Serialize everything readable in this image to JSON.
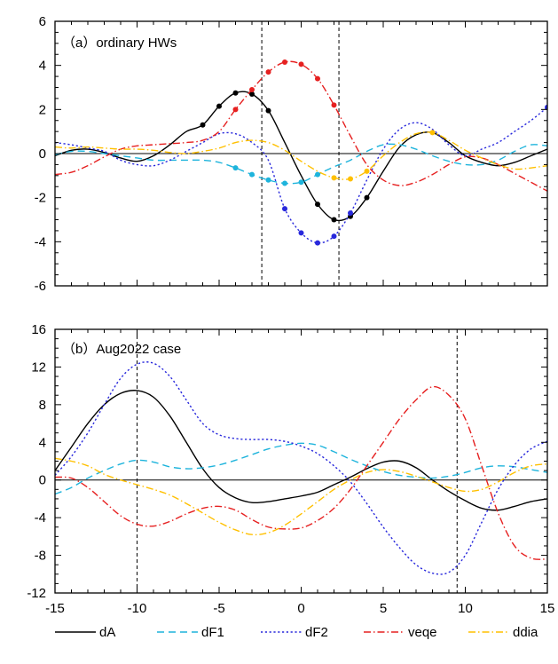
{
  "chart_data": [
    {
      "type": "line",
      "title": "（a）ordinary HWs",
      "xlim": [
        -15,
        15
      ],
      "ylim": [
        -6,
        6
      ],
      "xticks": [
        -15,
        -10,
        -5,
        0,
        5,
        10,
        15
      ],
      "yticks": [
        -6,
        -4,
        -2,
        0,
        2,
        4,
        6
      ],
      "ytick_labels": [
        "-6",
        "-4",
        "-2",
        "0",
        "2",
        "4",
        "6"
      ],
      "vlines": [
        -2.4,
        2.3
      ],
      "series": [
        {
          "name": "dA",
          "color": "#000000",
          "dash": "solid",
          "x": [
            -15,
            -14,
            -13,
            -12,
            -11,
            -10,
            -9,
            -8,
            -7,
            -6,
            -5,
            -4,
            -3,
            -2,
            -1,
            0,
            1,
            2,
            3,
            4,
            5,
            6,
            7,
            8,
            9,
            10,
            11,
            12,
            13,
            14,
            15
          ],
          "y": [
            -0.1,
            0.15,
            0.2,
            0.05,
            -0.2,
            -0.35,
            -0.1,
            0.4,
            1.0,
            1.3,
            2.15,
            2.75,
            2.7,
            1.95,
            0.5,
            -1.0,
            -2.3,
            -3.0,
            -2.85,
            -2.0,
            -0.8,
            0.3,
            0.85,
            0.95,
            0.5,
            -0.1,
            -0.4,
            -0.55,
            -0.4,
            -0.1,
            0.2
          ],
          "marked": [
            -6,
            -5,
            -4,
            -3,
            -2,
            1,
            2,
            3,
            4
          ]
        },
        {
          "name": "dF1",
          "color": "#1eb4dc",
          "dash": "long",
          "x": [
            -15,
            -14,
            -13,
            -12,
            -11,
            -10,
            -9,
            -8,
            -7,
            -6,
            -5,
            -4,
            -3,
            -2,
            -1,
            0,
            1,
            2,
            3,
            4,
            5,
            6,
            7,
            8,
            9,
            10,
            11,
            12,
            13,
            14,
            15
          ],
          "y": [
            -0.05,
            0.1,
            0.1,
            0.0,
            -0.1,
            -0.2,
            -0.3,
            -0.3,
            -0.3,
            -0.3,
            -0.4,
            -0.65,
            -0.95,
            -1.2,
            -1.35,
            -1.3,
            -0.95,
            -0.6,
            -0.3,
            0.1,
            0.4,
            0.4,
            0.2,
            -0.1,
            -0.35,
            -0.5,
            -0.5,
            -0.3,
            0.1,
            0.4,
            0.35
          ],
          "marked": [
            -4,
            -3,
            -2,
            -1,
            0,
            1
          ]
        },
        {
          "name": "dF2",
          "color": "#2828dc",
          "dash": "dot",
          "x": [
            -15,
            -14,
            -13,
            -12,
            -11,
            -10,
            -9,
            -8,
            -7,
            -6,
            -5,
            -4,
            -3,
            -2,
            -1,
            0,
            1,
            2,
            3,
            4,
            5,
            6,
            7,
            8,
            9,
            10,
            11,
            12,
            13,
            14,
            15
          ],
          "y": [
            0.5,
            0.4,
            0.25,
            0.1,
            -0.3,
            -0.5,
            -0.55,
            -0.3,
            0.1,
            0.5,
            0.9,
            0.9,
            0.5,
            -0.3,
            -2.5,
            -3.6,
            -4.05,
            -3.75,
            -2.7,
            -1.2,
            0.2,
            1.1,
            1.4,
            1.1,
            0.4,
            -0.1,
            0.2,
            0.5,
            1.0,
            1.5,
            2.1
          ],
          "marked": [
            -1,
            0,
            1,
            2,
            3,
            15
          ]
        },
        {
          "name": "veqe",
          "color": "#e62020",
          "dash": "dashdot",
          "x": [
            -15,
            -14,
            -13,
            -12,
            -11,
            -10,
            -9,
            -8,
            -7,
            -6,
            -5,
            -4,
            -3,
            -2,
            -1,
            0,
            1,
            2,
            3,
            4,
            5,
            6,
            7,
            8,
            9,
            10,
            11,
            12,
            13,
            14,
            15
          ],
          "y": [
            -0.95,
            -0.85,
            -0.55,
            -0.15,
            0.2,
            0.35,
            0.4,
            0.45,
            0.5,
            0.6,
            1.0,
            2.0,
            2.9,
            3.7,
            4.15,
            4.05,
            3.4,
            2.2,
            0.8,
            -0.5,
            -1.2,
            -1.45,
            -1.3,
            -0.95,
            -0.5,
            -0.15,
            -0.2,
            -0.5,
            -0.9,
            -1.3,
            -1.7
          ],
          "marked": [
            -4,
            -3,
            -2,
            -1,
            0,
            1,
            2
          ]
        },
        {
          "name": "ddia",
          "color": "#ffc000",
          "dash": "dashdot",
          "x": [
            -15,
            -14,
            -13,
            -12,
            -11,
            -10,
            -9,
            -8,
            -7,
            -6,
            -5,
            -4,
            -3,
            -2,
            -1,
            0,
            1,
            2,
            3,
            4,
            5,
            6,
            7,
            8,
            9,
            10,
            11,
            12,
            13,
            14,
            15
          ],
          "y": [
            0.3,
            0.25,
            0.3,
            0.25,
            0.2,
            0.2,
            0.15,
            0.05,
            0.0,
            0.1,
            0.25,
            0.5,
            0.6,
            0.5,
            0.15,
            -0.35,
            -0.8,
            -1.1,
            -1.15,
            -0.8,
            -0.1,
            0.5,
            0.9,
            0.95,
            0.6,
            0.15,
            -0.2,
            -0.5,
            -0.7,
            -0.65,
            -0.55
          ],
          "marked": [
            2,
            3,
            4,
            8
          ]
        }
      ]
    },
    {
      "type": "line",
      "title": "（b）Aug2022 case",
      "xlim": [
        -15,
        15
      ],
      "ylim": [
        -12,
        16
      ],
      "xticks": [
        -15,
        -10,
        -5,
        0,
        5,
        10,
        15
      ],
      "xtick_labels": [
        "-15",
        "-10",
        "-5",
        "0",
        "5",
        "10",
        "15"
      ],
      "yticks": [
        -12,
        -8,
        -4,
        0,
        4,
        8,
        12,
        16
      ],
      "ytick_labels": [
        "-12",
        "-8",
        "-4",
        "0",
        "4",
        "8",
        "12",
        "16"
      ],
      "vlines": [
        -10,
        9.5
      ],
      "series": [
        {
          "name": "dA",
          "color": "#000000",
          "dash": "solid",
          "x": [
            -15,
            -14,
            -13,
            -12,
            -11,
            -10,
            -9,
            -8,
            -7,
            -6,
            -5,
            -4,
            -3,
            -2,
            -1,
            0,
            1,
            2,
            3,
            4,
            5,
            6,
            7,
            8,
            9,
            10,
            11,
            12,
            13,
            14,
            15
          ],
          "y": [
            1.0,
            3.5,
            6.0,
            8.0,
            9.2,
            9.5,
            8.8,
            6.8,
            4.0,
            1.2,
            -0.8,
            -1.9,
            -2.4,
            -2.3,
            -2.0,
            -1.7,
            -1.3,
            -0.5,
            0.3,
            1.2,
            1.9,
            2.0,
            1.3,
            0.0,
            -1.2,
            -2.2,
            -3.0,
            -3.2,
            -2.8,
            -2.3,
            -2.0
          ]
        },
        {
          "name": "dF1",
          "color": "#1eb4dc",
          "dash": "long",
          "x": [
            -15,
            -14,
            -13,
            -12,
            -11,
            -10,
            -9,
            -8,
            -7,
            -6,
            -5,
            -4,
            -3,
            -2,
            -1,
            0,
            1,
            2,
            3,
            4,
            5,
            6,
            7,
            8,
            9,
            10,
            11,
            12,
            13,
            14,
            15
          ],
          "y": [
            -1.5,
            -0.8,
            0.2,
            1.0,
            1.7,
            2.1,
            1.9,
            1.4,
            1.2,
            1.3,
            1.6,
            2.1,
            2.7,
            3.3,
            3.7,
            3.9,
            3.7,
            3.0,
            2.2,
            1.5,
            0.9,
            0.5,
            0.3,
            0.2,
            0.4,
            0.8,
            1.3,
            1.5,
            1.4,
            1.1,
            0.8
          ]
        },
        {
          "name": "dF2",
          "color": "#2828dc",
          "dash": "dot",
          "x": [
            -15,
            -14,
            -13,
            -12,
            -11,
            -10,
            -9,
            -8,
            -7,
            -6,
            -5,
            -4,
            -3,
            -2,
            -1,
            0,
            1,
            2,
            3,
            4,
            5,
            6,
            7,
            8,
            9,
            10,
            11,
            12,
            13,
            14,
            15
          ],
          "y": [
            0.5,
            2.5,
            5.0,
            8.0,
            10.8,
            12.3,
            12.4,
            11.0,
            8.5,
            6.0,
            4.8,
            4.4,
            4.3,
            4.3,
            4.1,
            3.6,
            2.8,
            1.5,
            -0.2,
            -2.5,
            -5.0,
            -7.2,
            -9.0,
            -9.9,
            -9.8,
            -8.0,
            -4.5,
            -1.0,
            1.6,
            3.3,
            4.1
          ]
        },
        {
          "name": "veqe",
          "color": "#e62020",
          "dash": "dashdot",
          "x": [
            -15,
            -14,
            -13,
            -12,
            -11,
            -10,
            -9,
            -8,
            -7,
            -6,
            -5,
            -4,
            -3,
            -2,
            -1,
            0,
            1,
            2,
            3,
            4,
            5,
            6,
            7,
            8,
            9,
            10,
            11,
            12,
            13,
            14,
            15
          ],
          "y": [
            0.3,
            0.2,
            -0.8,
            -2.3,
            -3.8,
            -4.7,
            -4.9,
            -4.4,
            -3.6,
            -3.0,
            -2.8,
            -3.2,
            -4.2,
            -5.0,
            -5.2,
            -5.1,
            -4.3,
            -3.0,
            -1.0,
            1.5,
            4.0,
            6.5,
            8.5,
            9.9,
            9.0,
            6.5,
            1.5,
            -3.5,
            -7.0,
            -8.3,
            -8.4
          ]
        },
        {
          "name": "ddia",
          "color": "#ffc000",
          "dash": "dashdot",
          "x": [
            -15,
            -14,
            -13,
            -12,
            -11,
            -10,
            -9,
            -8,
            -7,
            -6,
            -5,
            -4,
            -3,
            -2,
            -1,
            0,
            1,
            2,
            3,
            4,
            5,
            6,
            7,
            8,
            9,
            10,
            11,
            12,
            13,
            14,
            15
          ],
          "y": [
            2.3,
            2.0,
            1.5,
            0.6,
            0.0,
            -0.5,
            -1.0,
            -1.6,
            -2.5,
            -3.5,
            -4.5,
            -5.3,
            -5.8,
            -5.6,
            -4.8,
            -3.6,
            -2.3,
            -1.0,
            0.0,
            0.8,
            1.1,
            0.9,
            0.4,
            -0.2,
            -0.8,
            -1.2,
            -1.0,
            -0.2,
            0.8,
            1.5,
            1.7
          ]
        }
      ]
    }
  ]
}
